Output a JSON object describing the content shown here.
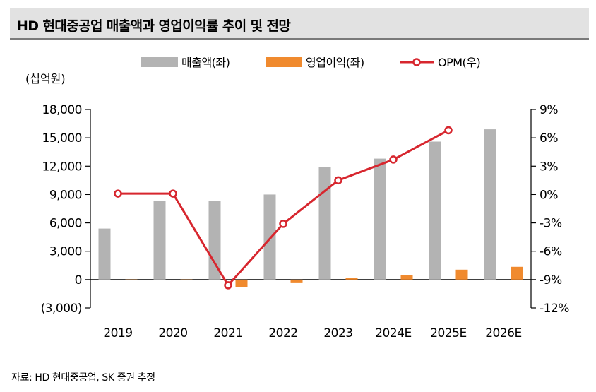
{
  "title": "HD 현대중공업 매출액과 영업이익률 추이 및 전망",
  "source": "자료: HD 현대중공업, SK 증권 추정",
  "colors": {
    "revenue": "#b3b3b3",
    "op_income": "#f08a2e",
    "opm": "#d7262e"
  },
  "chart_data": {
    "type": "bar+line",
    "unit_label": "(십억원)",
    "categories": [
      "2019",
      "2020",
      "2021",
      "2022",
      "2023",
      "2024E",
      "2025E",
      "2026E"
    ],
    "series": [
      {
        "name": "매출액(좌)",
        "type": "bar",
        "axis": "left",
        "values": [
          5400,
          8300,
          8300,
          9000,
          11900,
          12800,
          14600,
          15900
        ]
      },
      {
        "name": "영업이익(좌)",
        "type": "bar",
        "axis": "left",
        "values": [
          10,
          10,
          -800,
          -300,
          180,
          500,
          1050,
          1350
        ]
      },
      {
        "name": "OPM(우)",
        "type": "line",
        "axis": "right",
        "values": [
          0.1,
          0.1,
          -9.6,
          -3.1,
          1.5,
          3.7,
          6.8,
          null
        ]
      }
    ],
    "left_axis": {
      "min": -3000,
      "max": 18000,
      "step": 3000,
      "tick_labels": [
        "(3,000)",
        "0",
        "3,000",
        "6,000",
        "9,000",
        "12,000",
        "15,000",
        "18,000"
      ]
    },
    "right_axis": {
      "min": -12,
      "max": 9,
      "step": 3,
      "tick_labels": [
        "-12%",
        "-9%",
        "-6%",
        "-3%",
        "0%",
        "3%",
        "6%",
        "9%"
      ]
    },
    "legend_position": "top-center",
    "grid": false
  }
}
